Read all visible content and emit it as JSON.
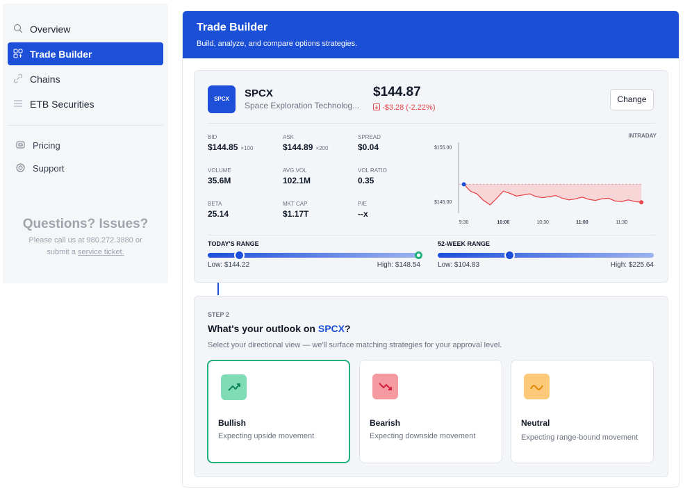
{
  "sidebar": {
    "nav": [
      "Overview",
      "Trade Builder",
      "Chains",
      "ETB Securities"
    ],
    "secondary": [
      "Pricing",
      "Support"
    ],
    "help": {
      "title": "Questions? Issues?",
      "text": "Please call us at 980.272.3880 or submit a",
      "link": "service ticket."
    }
  },
  "header": {
    "title": "Trade Builder",
    "subtitle": "Build, analyze, and compare options strategies."
  },
  "quote": {
    "logo": "SPCX",
    "ticker": "SPCX",
    "name": "Space Exploration Technolog...",
    "price": "$144.87",
    "change": "-$3.28 (-2.22%)",
    "button": "Change",
    "stats": [
      {
        "label": "BID",
        "value": "$144.85",
        "size": "×100"
      },
      {
        "label": "ASK",
        "value": "$144.89",
        "size": "×200"
      },
      {
        "label": "SPREAD",
        "value": "$0.04"
      },
      {
        "label": "VOLUME",
        "value": "35.6M"
      },
      {
        "label": "AVG VOL",
        "value": "102.1M"
      },
      {
        "label": "VOL RATIO",
        "value": "0.35"
      },
      {
        "label": "BETA",
        "value": "25.14"
      },
      {
        "label": "MKT CAP",
        "value": "$1.17T"
      },
      {
        "label": "P/E",
        "value": "--x"
      }
    ],
    "ranges": [
      {
        "title": "TODAY'S RANGE",
        "low": "Low: $144.22",
        "high": "High: $148.54"
      },
      {
        "title": "52-WEEK RANGE",
        "low": "Low: $104.83",
        "high": "High: $225.64"
      }
    ]
  },
  "chart_data": {
    "type": "line",
    "title": "INTRADAY",
    "x": [
      "9:30",
      "9:35",
      "9:40",
      "9:45",
      "9:50",
      "9:55",
      "10:00",
      "10:05",
      "10:10",
      "10:15",
      "10:20",
      "10:25",
      "10:30",
      "10:35",
      "10:40",
      "10:45",
      "10:50",
      "10:55",
      "11:00",
      "11:05",
      "11:10",
      "11:15",
      "11:20",
      "11:25",
      "11:30",
      "11:35",
      "11:40",
      "11:45"
    ],
    "series": [
      {
        "color": "#e5484d",
        "values": [
          148.15,
          146.9,
          146.4,
          145.2,
          144.4,
          145.6,
          146.9,
          146.5,
          146.0,
          146.2,
          146.4,
          145.9,
          145.7,
          145.9,
          146.1,
          145.6,
          145.3,
          145.5,
          145.8,
          145.4,
          145.2,
          145.5,
          145.6,
          145.1,
          145.0,
          145.3,
          145.0,
          144.87
        ]
      }
    ],
    "reference": 148.15,
    "xlim": [
      "9:26",
      "11:46"
    ],
    "xticks": [
      "9:30",
      "10:00",
      "10:30",
      "11:00",
      "11:30"
    ],
    "ylim": [
      143.5,
      155.8
    ],
    "yticks": [
      {
        "value": 155,
        "label": "$155.00"
      },
      {
        "value": 145,
        "label": "$145.00"
      }
    ]
  },
  "outlook": {
    "step": "STEP 2",
    "question": "What's your outlook on ",
    "ticker": "SPCX",
    "question_end": "?",
    "subtitle": "Select your directional view — we'll surface matching strategies for your approval level.",
    "cards": [
      {
        "title": "Bullish",
        "text": "Expecting upside movement"
      },
      {
        "title": "Bearish",
        "text": "Expecting downside movement"
      },
      {
        "title": "Neutral",
        "text": "Expecting range-bound movement"
      }
    ]
  }
}
